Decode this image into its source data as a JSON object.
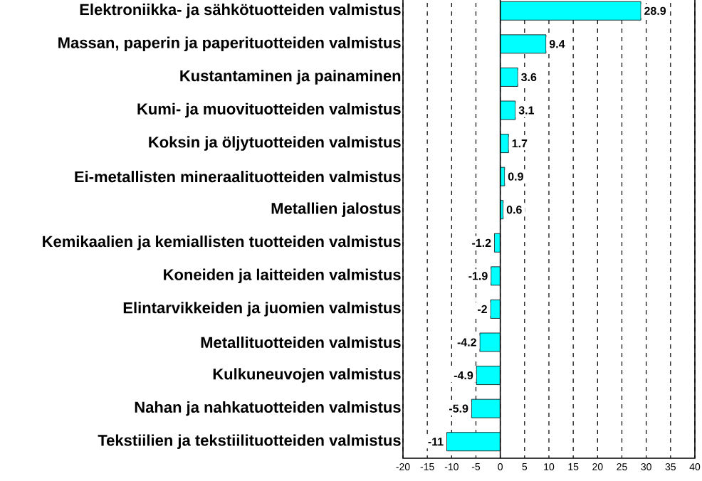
{
  "chart_data": {
    "type": "bar",
    "orientation": "horizontal",
    "categories": [
      "Elektroniikka- ja sähkötuotteiden valmistus",
      "Massan, paperin ja paperituotteiden valmistus",
      "Kustantaminen ja painaminen",
      "Kumi- ja muovituotteiden valmistus",
      "Koksin ja öljytuotteiden valmistus",
      "Ei-metallisten mineraalituotteiden valmistus",
      "Metallien jalostus",
      "Kemikaalien ja kemiallisten tuotteiden valmistus",
      "Koneiden ja laitteiden valmistus",
      "Elintarvikkeiden ja juomien valmistus",
      "Metallituotteiden valmistus",
      "Kulkuneuvojen valmistus",
      "Nahan ja nahkatuotteiden valmistus",
      "Tekstiilien ja tekstiilituotteiden valmistus"
    ],
    "values": [
      28.9,
      9.4,
      3.6,
      3.1,
      1.7,
      0.9,
      0.6,
      -1.2,
      -1.9,
      -2,
      -4.2,
      -4.9,
      -5.9,
      -11
    ],
    "color": "#00ffff",
    "data_labels": true,
    "grid": "x",
    "xlim": [
      -20,
      40
    ],
    "xticks": [
      -20,
      -15,
      -10,
      -5,
      0,
      5,
      10,
      15,
      20,
      25,
      30,
      35,
      40
    ]
  }
}
